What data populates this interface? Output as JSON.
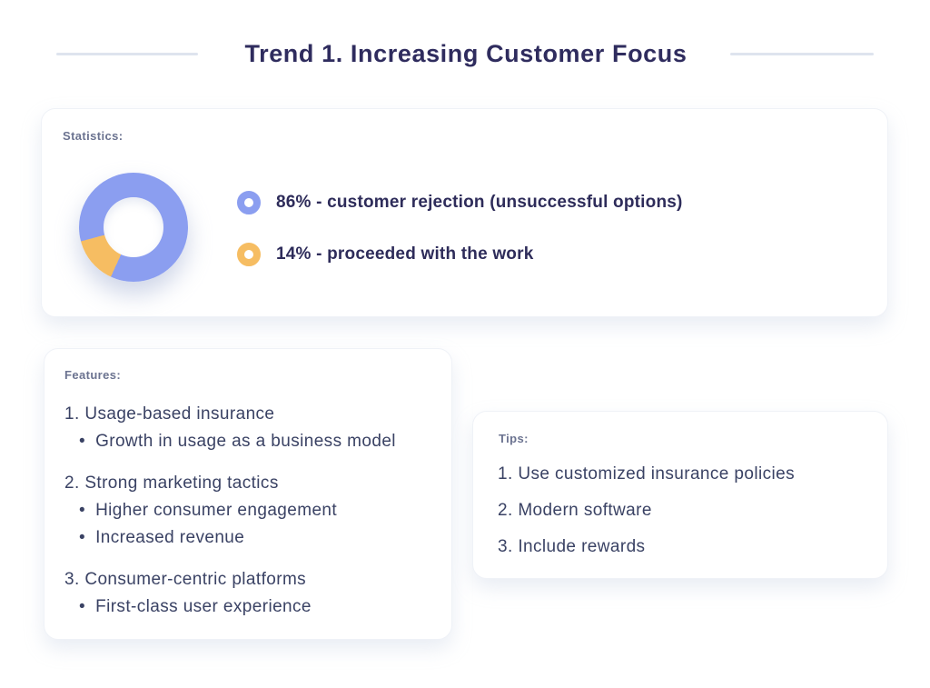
{
  "page": {
    "title": "Trend 1. Increasing Customer Focus"
  },
  "statistics_card": {
    "label": "Statistics:",
    "legend": [
      {
        "text": "86% - customer rejection (unsuccessful options)",
        "color": "#8B9EF0"
      },
      {
        "text": "14% - proceeded with the work",
        "color": "#F6BD62"
      }
    ]
  },
  "features_card": {
    "label": "Features:",
    "items": [
      {
        "title": "1. Usage-based insurance",
        "subitems": [
          "Growth in usage as a business model"
        ]
      },
      {
        "title": "2. Strong marketing tactics",
        "subitems": [
          "Higher consumer engagement",
          "Increased revenue"
        ]
      },
      {
        "title": "3. Consumer-centric platforms",
        "subitems": [
          "First-class user experience"
        ]
      }
    ]
  },
  "tips_card": {
    "label": "Tips:",
    "items": [
      "1. Use customized insurance policies",
      "2. Modern software",
      "3. Include rewards"
    ]
  },
  "chart_data": {
    "type": "pie",
    "subtype": "donut",
    "labels": [
      "customer rejection (unsuccessful options)",
      "proceeded with the work"
    ],
    "values": [
      86,
      14
    ],
    "colors": [
      "#8B9EF0",
      "#F6BD62"
    ],
    "start_angle_deg": 255,
    "legend_position": "right",
    "title": ""
  },
  "colors": {
    "title": "#2F2C5E",
    "divider": "#DEE4EE",
    "card_label": "#6B7390",
    "body_text": "#3A4264",
    "legend_text": "#2E2C5A",
    "accent_blue": "#8B9EF0",
    "accent_orange": "#F6BD62"
  }
}
